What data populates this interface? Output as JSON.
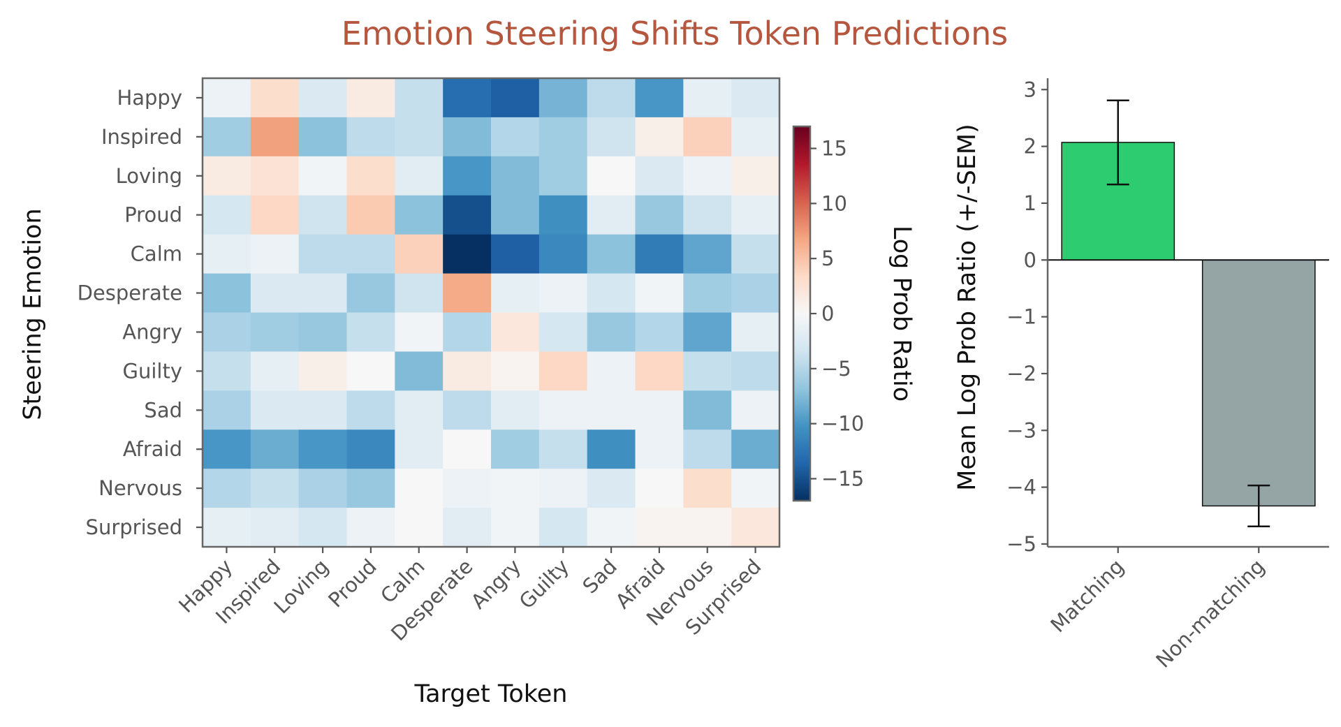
{
  "title": "Emotion Steering Shifts Token Predictions",
  "chart_data": [
    {
      "type": "heatmap",
      "xlabel": "Target Token",
      "ylabel": "Steering Emotion",
      "x_categories": [
        "Happy",
        "Inspired",
        "Loving",
        "Proud",
        "Calm",
        "Desperate",
        "Angry",
        "Guilty",
        "Sad",
        "Afraid",
        "Nervous",
        "Surprised"
      ],
      "y_categories": [
        "Happy",
        "Inspired",
        "Loving",
        "Proud",
        "Calm",
        "Desperate",
        "Angry",
        "Guilty",
        "Sad",
        "Afraid",
        "Nervous",
        "Surprised"
      ],
      "values": [
        [
          -1,
          3,
          -2.5,
          1.5,
          -4,
          -13,
          -14,
          -8,
          -4.5,
          -10,
          -1.5,
          -2.5
        ],
        [
          -6,
          7,
          -7,
          -4.5,
          -4,
          -7.5,
          -5,
          -6,
          -3.5,
          1,
          4,
          -1.5
        ],
        [
          1.5,
          2.5,
          -0.5,
          3,
          -2,
          -10,
          -7.5,
          -6,
          0,
          -2.5,
          -1,
          1
        ],
        [
          -3,
          3.5,
          -3.5,
          4.5,
          -7,
          -15,
          -7.5,
          -10.5,
          -2,
          -6.5,
          -3.5,
          -1.5
        ],
        [
          -1.5,
          -1,
          -4.5,
          -4.5,
          4,
          -17,
          -14,
          -11,
          -7,
          -12,
          -9,
          -4
        ],
        [
          -7,
          -2.5,
          -2.5,
          -6.5,
          -3.5,
          6.5,
          -1.5,
          -1,
          -3,
          -0.5,
          -6,
          -5.5
        ],
        [
          -5.5,
          -6,
          -6.5,
          -4,
          -0.5,
          -5,
          2,
          -3,
          -6.5,
          -5,
          -9,
          -1.5
        ],
        [
          -4,
          -1.5,
          1,
          0,
          -7.5,
          1.5,
          0.5,
          3.5,
          -1,
          3.5,
          -4,
          -4.5
        ],
        [
          -5.5,
          -2.5,
          -2.5,
          -4.5,
          -2,
          -4.5,
          -2,
          -1,
          -1,
          -1,
          -7.5,
          -1
        ],
        [
          -10,
          -8.5,
          -10,
          -11,
          -2,
          0,
          -6,
          -4,
          -10.5,
          -1,
          -4.5,
          -8.5
        ],
        [
          -5,
          -4,
          -5.5,
          -6.5,
          0,
          -1,
          -0.5,
          -1,
          -2.5,
          0,
          3,
          -0.5
        ],
        [
          -1.5,
          -2,
          -3,
          -1,
          0,
          -2,
          -0.5,
          -3,
          -0.5,
          0.5,
          0.5,
          2
        ]
      ],
      "colormap": "RdBu_r",
      "vmin": -17,
      "vmax": 17,
      "colorbar": {
        "label": "Log Prob Ratio",
        "ticks": [
          15,
          10,
          5,
          0,
          -5,
          -10,
          -15
        ],
        "tick_labels": [
          "15",
          "10",
          "5",
          "0",
          "−5",
          "−10",
          "−15"
        ]
      },
      "grid": false
    },
    {
      "type": "bar",
      "categories": [
        "Matching",
        "Non-matching"
      ],
      "values": [
        2.07,
        -4.33
      ],
      "errors": [
        0.74,
        0.36
      ],
      "colors": [
        "#2ecc71",
        "#95a5a6"
      ],
      "ylabel": "Mean Log Prob Ratio (+/-SEM)",
      "ylim": [
        -5.05,
        3.2
      ],
      "yticks": [
        3,
        2,
        1,
        0,
        -1,
        -2,
        -3,
        -4,
        -5
      ],
      "ytick_labels": [
        "3",
        "2",
        "1",
        "0",
        "−1",
        "−2",
        "−3",
        "−4",
        "−5"
      ],
      "zero_line": true,
      "grid": false
    }
  ]
}
